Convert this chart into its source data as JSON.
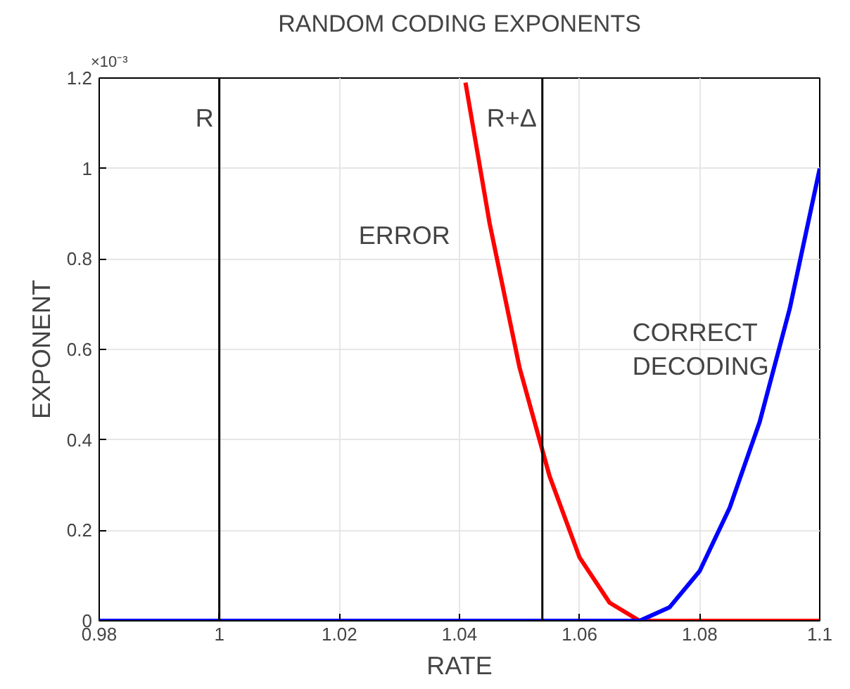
{
  "chart_data": {
    "type": "line",
    "title": "RANDOM CODING EXPONENTS",
    "xlabel": "RATE",
    "ylabel": "EXPONENT",
    "series": [
      {
        "color": "#ff0000",
        "x": [
          1.041,
          1.045,
          1.05,
          1.055,
          1.06,
          1.065,
          1.07,
          1.08,
          1.09,
          1.1
        ],
        "values": [
          1.19,
          0.88,
          0.56,
          0.32,
          0.14,
          0.04,
          0,
          0,
          0,
          0
        ]
      },
      {
        "color": "#0000ff",
        "x": [
          0.98,
          1.0,
          1.02,
          1.04,
          1.06,
          1.07,
          1.075,
          1.08,
          1.085,
          1.09,
          1.095,
          1.1
        ],
        "values": [
          0,
          0,
          0,
          0,
          0,
          0,
          0.03,
          0.11,
          0.25,
          0.44,
          0.69,
          1.0
        ]
      }
    ],
    "xlim": [
      0.98,
      1.1
    ],
    "xticks": [
      0.98,
      1,
      1.02,
      1.04,
      1.06,
      1.08,
      1.1
    ],
    "ylim": [
      0,
      1.2
    ],
    "yticks": [
      0,
      0.2,
      0.4,
      0.6,
      0.8,
      1,
      1.2
    ],
    "ref_lines": [
      {
        "axis": "x",
        "value": 1,
        "label": "R",
        "color": "#000000"
      },
      {
        "axis": "x",
        "value": 1.0538,
        "label": "R+Δ",
        "color": "#000000"
      }
    ],
    "annotations": [
      "×10⁻³",
      "ERROR",
      "CORRECT\nDECODING"
    ],
    "grid": true,
    "marker": "none",
    "line_style": "solid"
  }
}
